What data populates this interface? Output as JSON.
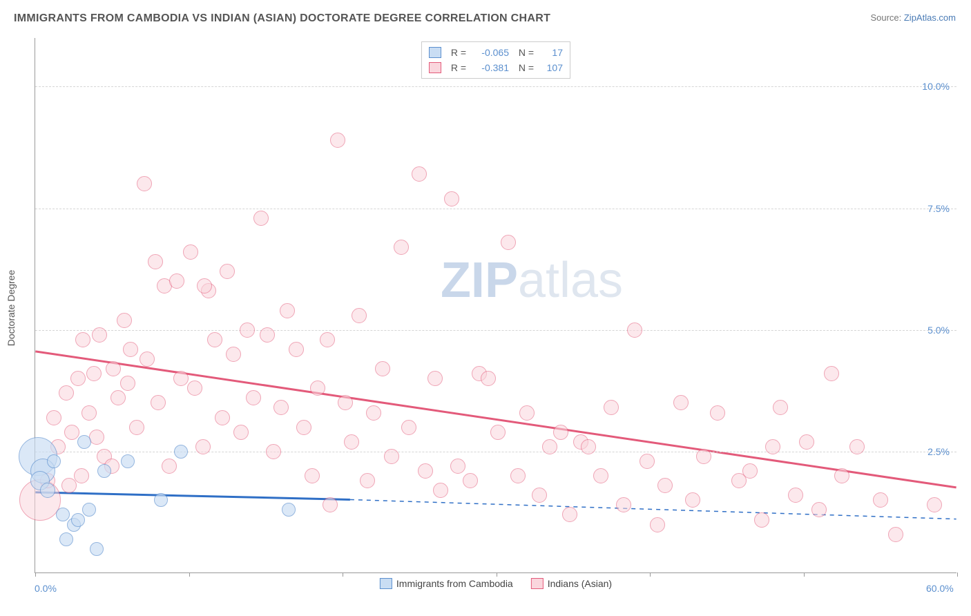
{
  "title": "IMMIGRANTS FROM CAMBODIA VS INDIAN (ASIAN) DOCTORATE DEGREE CORRELATION CHART",
  "source_prefix": "Source: ",
  "source_link": "ZipAtlas.com",
  "y_axis_title": "Doctorate Degree",
  "watermark": {
    "text1": "ZIP",
    "text2": "atlas",
    "color1": "#c9d7ea",
    "color2": "#dfe6ef"
  },
  "chart": {
    "type": "scatter",
    "xlim": [
      0,
      60
    ],
    "ylim": [
      0,
      11
    ],
    "x_tick_positions": [
      0,
      10,
      20,
      30,
      40,
      50,
      60
    ],
    "x_tick_labels_shown": {
      "0": "0.0%",
      "60": "60.0%"
    },
    "y_ticks": [
      {
        "v": 2.5,
        "label": "2.5%"
      },
      {
        "v": 5.0,
        "label": "5.0%"
      },
      {
        "v": 7.5,
        "label": "7.5%"
      },
      {
        "v": 10.0,
        "label": "10.0%"
      }
    ],
    "grid_color": "#d5d5d5",
    "background_color": "#ffffff",
    "axis_color": "#999999",
    "tick_label_color": "#5b8fce"
  },
  "series": {
    "cambodia": {
      "label": "Immigrants from Cambodia",
      "fill": "#c9ddf3",
      "stroke": "#5b8fce",
      "fill_opacity": 0.65,
      "r_default": 10,
      "trend": {
        "color": "#2f6fc6",
        "width": 3,
        "solid_to_x": 20.5,
        "dash_to_x": 60,
        "y_start": 1.65,
        "y_at_solid_end": 1.5,
        "y_end": 1.1
      },
      "points": [
        {
          "x": 0.2,
          "y": 2.4,
          "r": 28
        },
        {
          "x": 0.5,
          "y": 2.1,
          "r": 18
        },
        {
          "x": 0.3,
          "y": 1.9,
          "r": 14
        },
        {
          "x": 0.8,
          "y": 1.7,
          "r": 11
        },
        {
          "x": 1.2,
          "y": 2.3,
          "r": 10
        },
        {
          "x": 1.8,
          "y": 1.2,
          "r": 10
        },
        {
          "x": 2.5,
          "y": 1.0,
          "r": 10
        },
        {
          "x": 2.0,
          "y": 0.7,
          "r": 10
        },
        {
          "x": 2.8,
          "y": 1.1,
          "r": 10
        },
        {
          "x": 3.5,
          "y": 1.3,
          "r": 10
        },
        {
          "x": 3.2,
          "y": 2.7,
          "r": 10
        },
        {
          "x": 4.5,
          "y": 2.1,
          "r": 10
        },
        {
          "x": 4.0,
          "y": 0.5,
          "r": 10
        },
        {
          "x": 6.0,
          "y": 2.3,
          "r": 10
        },
        {
          "x": 8.2,
          "y": 1.5,
          "r": 10
        },
        {
          "x": 9.5,
          "y": 2.5,
          "r": 10
        },
        {
          "x": 16.5,
          "y": 1.3,
          "r": 10
        }
      ]
    },
    "indian": {
      "label": "Indians (Asian)",
      "fill": "#fad6dd",
      "stroke": "#e35a7a",
      "fill_opacity": 0.55,
      "r_default": 11,
      "trend": {
        "color": "#e35a7a",
        "width": 3,
        "y_start": 4.55,
        "y_end": 1.75
      },
      "points": [
        {
          "x": 0.3,
          "y": 1.5,
          "r": 30
        },
        {
          "x": 0.8,
          "y": 1.9
        },
        {
          "x": 1.5,
          "y": 2.6
        },
        {
          "x": 1.2,
          "y": 3.2
        },
        {
          "x": 2.0,
          "y": 3.7
        },
        {
          "x": 2.4,
          "y": 2.9
        },
        {
          "x": 2.8,
          "y": 4.0
        },
        {
          "x": 3.1,
          "y": 4.8
        },
        {
          "x": 3.5,
          "y": 3.3
        },
        {
          "x": 3.8,
          "y": 4.1
        },
        {
          "x": 4.2,
          "y": 4.9
        },
        {
          "x": 4.5,
          "y": 2.4
        },
        {
          "x": 5.1,
          "y": 4.2
        },
        {
          "x": 5.4,
          "y": 3.6
        },
        {
          "x": 5.8,
          "y": 5.2
        },
        {
          "x": 6.2,
          "y": 4.6
        },
        {
          "x": 6.6,
          "y": 3.0
        },
        {
          "x": 7.1,
          "y": 8.0
        },
        {
          "x": 7.3,
          "y": 4.4
        },
        {
          "x": 7.8,
          "y": 6.4
        },
        {
          "x": 8.0,
          "y": 3.5
        },
        {
          "x": 8.4,
          "y": 5.9
        },
        {
          "x": 8.7,
          "y": 2.2
        },
        {
          "x": 9.2,
          "y": 6.0
        },
        {
          "x": 9.5,
          "y": 4.0
        },
        {
          "x": 10.1,
          "y": 6.6
        },
        {
          "x": 10.4,
          "y": 3.8
        },
        {
          "x": 10.9,
          "y": 2.6
        },
        {
          "x": 11.3,
          "y": 5.8
        },
        {
          "x": 11.7,
          "y": 4.8
        },
        {
          "x": 12.2,
          "y": 3.2
        },
        {
          "x": 12.5,
          "y": 6.2
        },
        {
          "x": 12.9,
          "y": 4.5
        },
        {
          "x": 13.4,
          "y": 2.9
        },
        {
          "x": 13.8,
          "y": 5.0
        },
        {
          "x": 14.2,
          "y": 3.6
        },
        {
          "x": 14.7,
          "y": 7.3
        },
        {
          "x": 15.1,
          "y": 4.9
        },
        {
          "x": 15.5,
          "y": 2.5
        },
        {
          "x": 16.0,
          "y": 3.4
        },
        {
          "x": 16.4,
          "y": 5.4
        },
        {
          "x": 17.0,
          "y": 4.6
        },
        {
          "x": 17.5,
          "y": 3.0
        },
        {
          "x": 18.0,
          "y": 2.0
        },
        {
          "x": 18.4,
          "y": 3.8
        },
        {
          "x": 19.0,
          "y": 4.8
        },
        {
          "x": 19.2,
          "y": 1.4
        },
        {
          "x": 19.7,
          "y": 8.9
        },
        {
          "x": 20.2,
          "y": 3.5
        },
        {
          "x": 20.6,
          "y": 2.7
        },
        {
          "x": 21.1,
          "y": 5.3
        },
        {
          "x": 21.6,
          "y": 1.9
        },
        {
          "x": 22.0,
          "y": 3.3
        },
        {
          "x": 22.6,
          "y": 4.2
        },
        {
          "x": 23.2,
          "y": 2.4
        },
        {
          "x": 23.8,
          "y": 6.7
        },
        {
          "x": 24.3,
          "y": 3.0
        },
        {
          "x": 25.0,
          "y": 8.2
        },
        {
          "x": 25.4,
          "y": 2.1
        },
        {
          "x": 26.0,
          "y": 4.0
        },
        {
          "x": 26.4,
          "y": 1.7
        },
        {
          "x": 27.1,
          "y": 7.7
        },
        {
          "x": 27.5,
          "y": 2.2
        },
        {
          "x": 28.3,
          "y": 1.9
        },
        {
          "x": 28.9,
          "y": 4.1
        },
        {
          "x": 29.5,
          "y": 4.0
        },
        {
          "x": 30.1,
          "y": 2.9
        },
        {
          "x": 30.8,
          "y": 6.8
        },
        {
          "x": 31.4,
          "y": 2.0
        },
        {
          "x": 32.0,
          "y": 3.3
        },
        {
          "x": 32.8,
          "y": 1.6
        },
        {
          "x": 33.5,
          "y": 2.6
        },
        {
          "x": 34.2,
          "y": 2.9
        },
        {
          "x": 34.8,
          "y": 1.2
        },
        {
          "x": 35.5,
          "y": 2.7
        },
        {
          "x": 36.0,
          "y": 2.6
        },
        {
          "x": 36.8,
          "y": 2.0
        },
        {
          "x": 37.5,
          "y": 3.4
        },
        {
          "x": 38.3,
          "y": 1.4
        },
        {
          "x": 39.0,
          "y": 5.0
        },
        {
          "x": 39.8,
          "y": 2.3
        },
        {
          "x": 40.5,
          "y": 1.0
        },
        {
          "x": 41.0,
          "y": 1.8
        },
        {
          "x": 42.0,
          "y": 3.5
        },
        {
          "x": 42.8,
          "y": 1.5
        },
        {
          "x": 43.5,
          "y": 2.4
        },
        {
          "x": 44.4,
          "y": 3.3
        },
        {
          "x": 45.8,
          "y": 1.9
        },
        {
          "x": 46.5,
          "y": 2.1
        },
        {
          "x": 47.3,
          "y": 1.1
        },
        {
          "x": 48.0,
          "y": 2.6
        },
        {
          "x": 48.5,
          "y": 3.4
        },
        {
          "x": 49.5,
          "y": 1.6
        },
        {
          "x": 50.2,
          "y": 2.7
        },
        {
          "x": 51.0,
          "y": 1.3
        },
        {
          "x": 51.8,
          "y": 4.1
        },
        {
          "x": 52.5,
          "y": 2.0
        },
        {
          "x": 53.5,
          "y": 2.6
        },
        {
          "x": 55.0,
          "y": 1.5
        },
        {
          "x": 56.0,
          "y": 0.8
        },
        {
          "x": 58.5,
          "y": 1.4
        },
        {
          "x": 2.2,
          "y": 1.8
        },
        {
          "x": 3.0,
          "y": 2.0
        },
        {
          "x": 4.0,
          "y": 2.8
        },
        {
          "x": 5.0,
          "y": 2.2
        },
        {
          "x": 6.0,
          "y": 3.9
        },
        {
          "x": 11.0,
          "y": 5.9
        }
      ]
    }
  },
  "stats": [
    {
      "swatch_fill": "#c9ddf3",
      "swatch_stroke": "#5b8fce",
      "r_label": "R =",
      "r_value": "-0.065",
      "n_label": "N =",
      "n_value": "17"
    },
    {
      "swatch_fill": "#fad6dd",
      "swatch_stroke": "#e35a7a",
      "r_label": "R =",
      "r_value": "-0.381",
      "n_label": "N =",
      "n_value": "107"
    }
  ],
  "bottom_legend": [
    {
      "swatch_fill": "#c9ddf3",
      "swatch_stroke": "#5b8fce",
      "label": "Immigrants from Cambodia"
    },
    {
      "swatch_fill": "#fad6dd",
      "swatch_stroke": "#e35a7a",
      "label": "Indians (Asian)"
    }
  ]
}
